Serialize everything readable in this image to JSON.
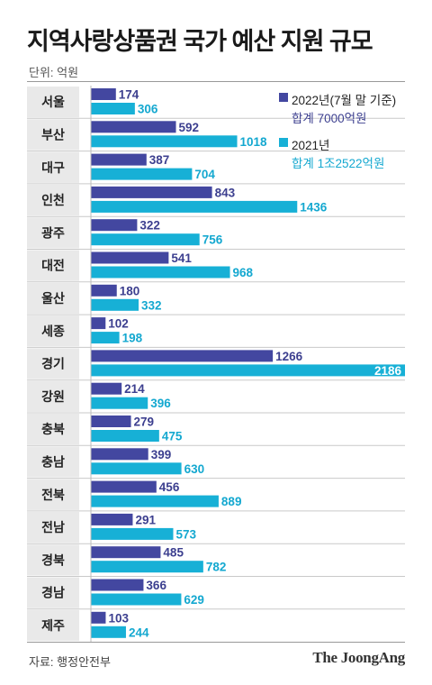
{
  "title": "지역사랑상품권 국가 예산 지원 규모",
  "unit_label": "단위: 억원",
  "source": "자료: 행정안전부",
  "brand": "The JoongAng",
  "colors": {
    "series_2022": "#4347a0",
    "series_2021": "#17b0d6",
    "label_2022": "#3c3f8f",
    "label_2021": "#14a8d0",
    "row_shade": "#e9e9e9",
    "divider": "#c9c9c9"
  },
  "legend": [
    {
      "name": "2022년(7월 말 기준)",
      "total": "합계 7000억원"
    },
    {
      "name": "2021년",
      "total": "합계 1조2522억원"
    }
  ],
  "chart_data": {
    "type": "bar",
    "orientation": "horizontal",
    "title": "지역사랑상품권 국가 예산 지원 규모",
    "categories": [
      "서울",
      "부산",
      "대구",
      "인천",
      "광주",
      "대전",
      "울산",
      "세종",
      "경기",
      "강원",
      "충북",
      "충남",
      "전북",
      "전남",
      "경북",
      "경남",
      "제주"
    ],
    "series": [
      {
        "name": "2022년(7월 말 기준)",
        "values": [
          174,
          592,
          387,
          843,
          322,
          541,
          180,
          102,
          1266,
          214,
          279,
          399,
          456,
          291,
          485,
          366,
          103
        ]
      },
      {
        "name": "2021년",
        "values": [
          306,
          1018,
          704,
          1436,
          756,
          968,
          332,
          198,
          2186,
          396,
          475,
          630,
          889,
          573,
          782,
          629,
          244
        ]
      }
    ],
    "xlim": [
      0,
      2186
    ],
    "grid": false,
    "legend_position": "top-right"
  }
}
